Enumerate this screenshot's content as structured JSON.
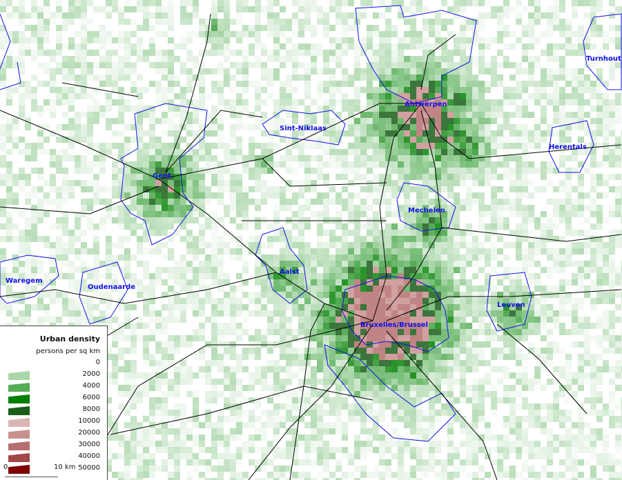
{
  "map": {
    "cities": [
      "Turnhout",
      "Antwerpen",
      "Sint-Niklaas",
      "Herentals",
      "Gent",
      "Mechelen",
      "Waregem",
      "Oudenaarde",
      "Aalst",
      "Leuven",
      "Bruxelles/Brussel"
    ],
    "colors": {
      "boundary": "#1010e8",
      "road": "#000000",
      "label": "#1010e8"
    }
  },
  "legend": {
    "title": "Urban density",
    "subtitle": "persons per sq km",
    "classes": [
      {
        "value": "0",
        "color": null
      },
      {
        "value": "2000",
        "color": "#a9d6a9"
      },
      {
        "value": "4000",
        "color": "#55ad55"
      },
      {
        "value": "6000",
        "color": "#008000"
      },
      {
        "value": "8000",
        "color": "#1a5e1a"
      },
      {
        "value": "10000",
        "color": "#dbb4b4"
      },
      {
        "value": "20000",
        "color": "#c99090"
      },
      {
        "value": "30000",
        "color": "#b66e6e"
      },
      {
        "value": "40000",
        "color": "#a24848"
      },
      {
        "value": "50000",
        "color": "#800000"
      }
    ],
    "scale": {
      "start": "0",
      "end": "10 km"
    }
  }
}
